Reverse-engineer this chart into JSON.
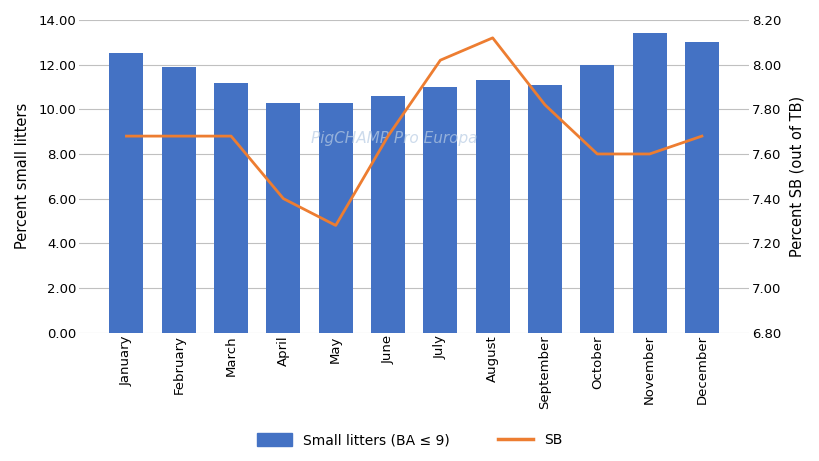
{
  "months": [
    "January",
    "February",
    "March",
    "April",
    "May",
    "June",
    "July",
    "August",
    "September",
    "October",
    "November",
    "December"
  ],
  "bar_values": [
    12.5,
    11.9,
    11.2,
    10.3,
    10.3,
    10.6,
    11.0,
    11.3,
    11.1,
    12.0,
    13.4,
    13.0
  ],
  "line_values": [
    7.68,
    7.68,
    7.68,
    7.4,
    7.28,
    7.68,
    8.02,
    8.12,
    7.82,
    7.6,
    7.6,
    7.68
  ],
  "bar_color": "#4472C4",
  "line_color": "#ED7D31",
  "left_ylim": [
    0,
    14.0
  ],
  "left_yticks": [
    0.0,
    2.0,
    4.0,
    6.0,
    8.0,
    10.0,
    12.0,
    14.0
  ],
  "right_ylim": [
    6.8,
    8.2
  ],
  "right_yticks": [
    6.8,
    7.0,
    7.2,
    7.4,
    7.6,
    7.8,
    8.0,
    8.2
  ],
  "left_ylabel": "Percent small litters",
  "right_ylabel": "Percent SB (out of TB)",
  "watermark": "PigCHAMP Pro Europa",
  "legend_bar_label": "Small litters (BA ≤ 9)",
  "legend_line_label": "SB",
  "background_color": "#FFFFFF",
  "grid_color": "#C0C0C0",
  "line_width": 2.0,
  "bar_width": 0.65,
  "tick_fontsize": 9.5,
  "ylabel_fontsize": 10.5
}
